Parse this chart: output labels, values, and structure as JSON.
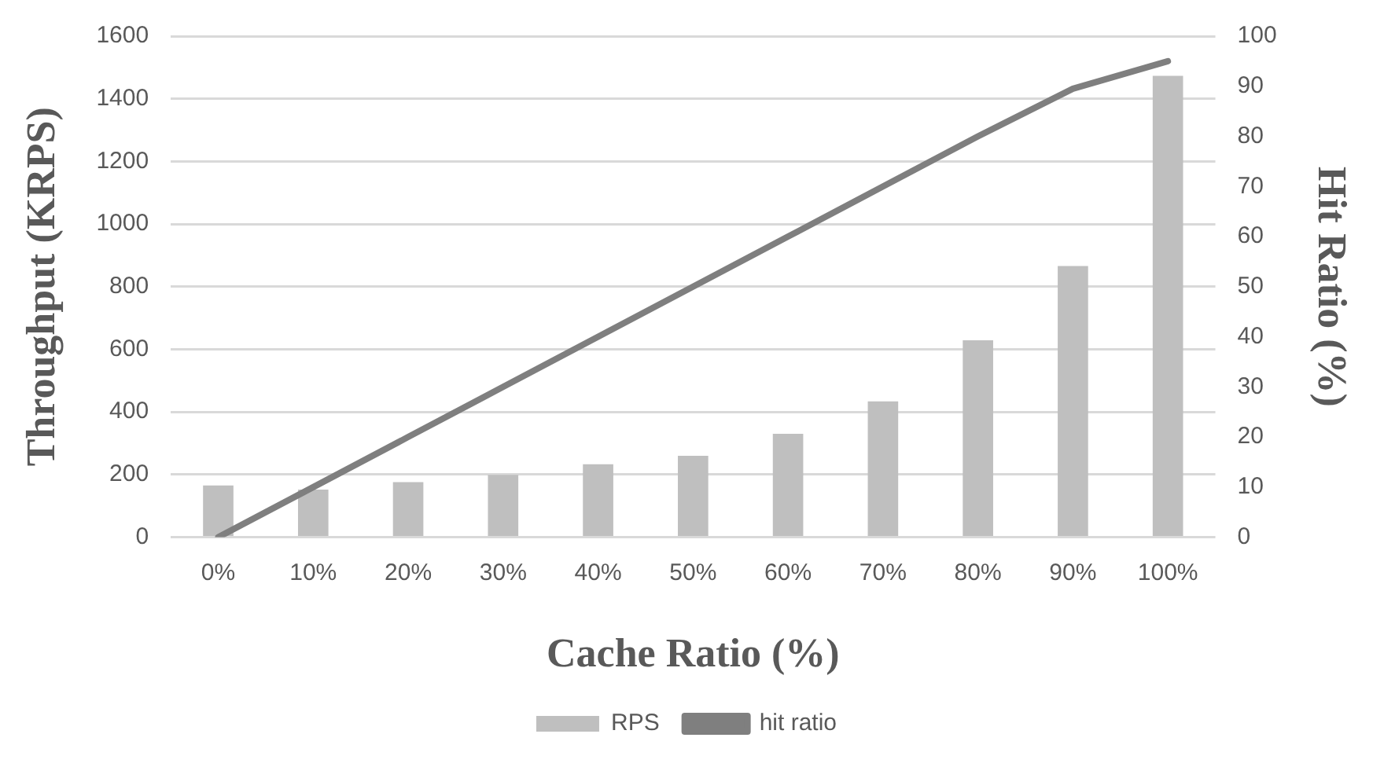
{
  "chart_data": {
    "type": "bar",
    "xlabel": "Cache Ratio (%)",
    "ylabel": "Throughput (KRPS)",
    "y2label": "Hit Ratio (%)",
    "categories": [
      "0%",
      "10%",
      "20%",
      "30%",
      "40%",
      "50%",
      "60%",
      "70%",
      "80%",
      "90%",
      "100%"
    ],
    "series": [
      {
        "name": "RPS",
        "color": "#bfbfbf",
        "values": [
          165,
          152,
          176,
          199,
          233,
          260,
          330,
          434,
          629,
          866,
          1473
        ]
      },
      {
        "name": "hit ratio",
        "type": "line",
        "axis": "y2",
        "color": "#7f7f7f",
        "values": [
          0,
          10,
          20,
          30,
          40,
          50,
          60,
          70,
          80,
          89.5,
          95
        ]
      }
    ],
    "ylim": [
      0,
      1600
    ],
    "yticks": [
      0,
      200,
      400,
      600,
      800,
      1000,
      1200,
      1400,
      1600
    ],
    "y2lim": [
      0,
      100
    ],
    "y2ticks": [
      0,
      10,
      20,
      30,
      40,
      50,
      60,
      70,
      80,
      90,
      100
    ],
    "grid": "y",
    "legend": "bottom",
    "marker": "none"
  }
}
